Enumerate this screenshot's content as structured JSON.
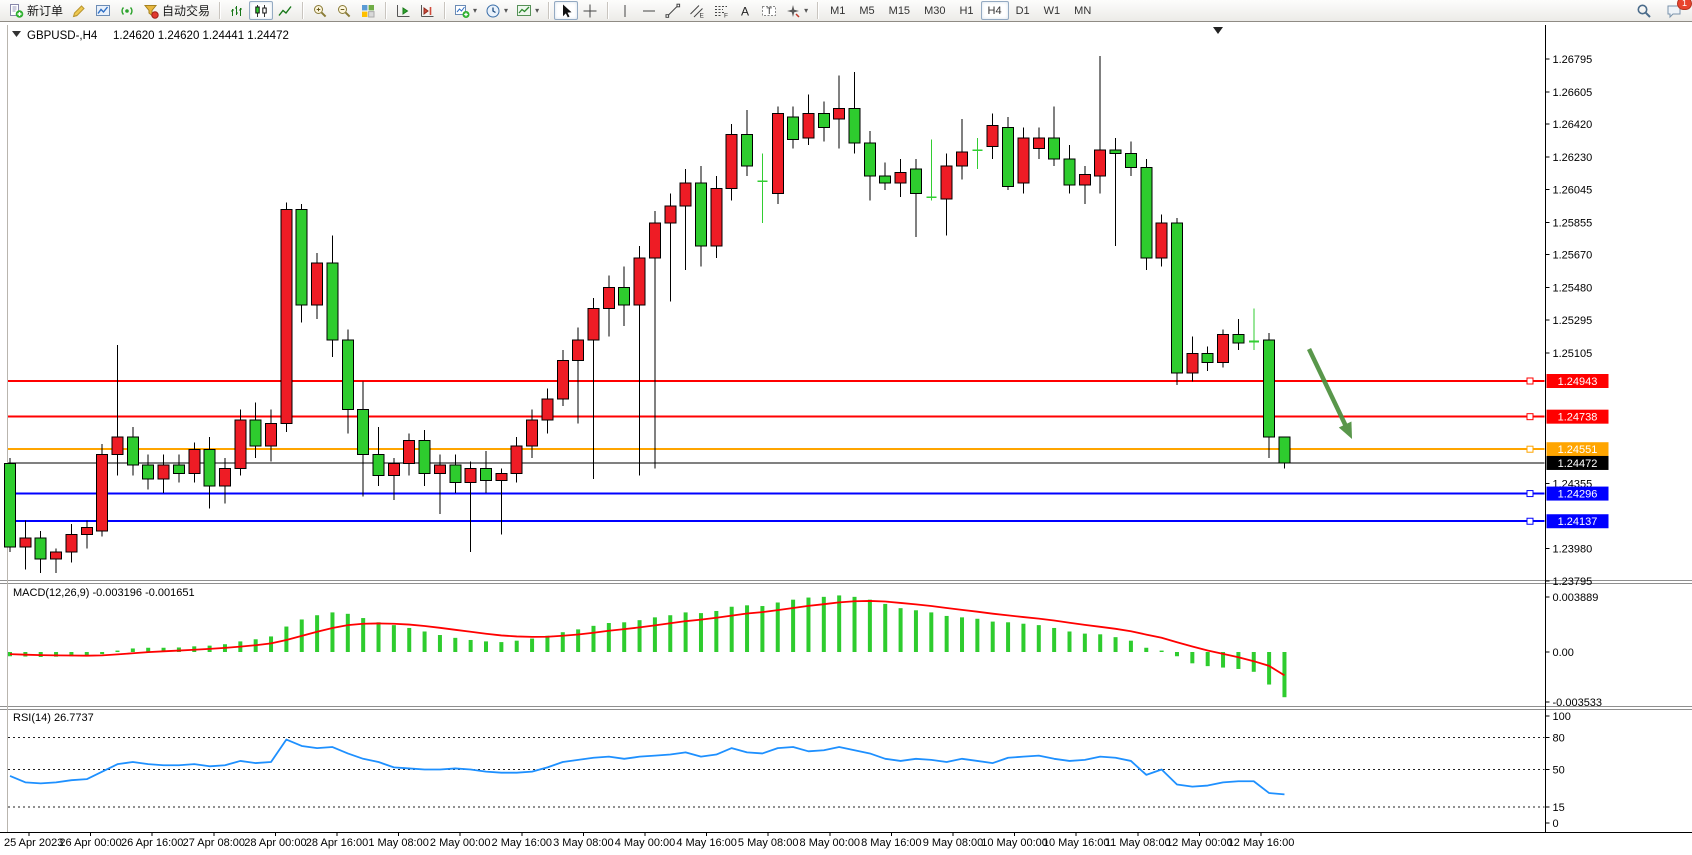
{
  "toolbar": {
    "groups": [
      {
        "items": [
          {
            "name": "new-order-button",
            "icon": "new-order",
            "label": "新订单"
          },
          {
            "name": "metaeditor-button",
            "icon": "pencil"
          },
          {
            "name": "charts-button",
            "icon": "chart-window"
          },
          {
            "name": "signal-button",
            "icon": "signal"
          },
          {
            "name": "auto-trading-button",
            "icon": "funnel",
            "label": "自动交易"
          }
        ]
      },
      {
        "items": [
          {
            "name": "bar-chart-button",
            "icon": "bar-chart"
          },
          {
            "name": "candlestick-chart-button",
            "icon": "candle-chart",
            "active": true
          },
          {
            "name": "line-chart-button",
            "icon": "line-chart"
          }
        ]
      },
      {
        "items": [
          {
            "name": "zoom-in-button",
            "icon": "zoom-in"
          },
          {
            "name": "zoom-out-button",
            "icon": "zoom-out"
          },
          {
            "name": "tile-windows-button",
            "icon": "tile-windows"
          }
        ]
      },
      {
        "items": [
          {
            "name": "auto-scroll-button",
            "icon": "auto-scroll"
          },
          {
            "name": "chart-shift-button",
            "icon": "chart-shift"
          }
        ]
      },
      {
        "items": [
          {
            "name": "new-chart-dropdown",
            "icon": "new-chart",
            "caret": true
          },
          {
            "name": "period-dropdown",
            "icon": "clock",
            "caret": true
          },
          {
            "name": "template-dropdown",
            "icon": "template",
            "caret": true
          }
        ]
      },
      {
        "items": [
          {
            "name": "cursor-button",
            "icon": "cursor",
            "active": true
          },
          {
            "name": "crosshair-button",
            "icon": "crosshair"
          }
        ]
      },
      {
        "items": [
          {
            "name": "vertical-line-button",
            "icon": "vline"
          },
          {
            "name": "horizontal-line-button",
            "icon": "hline"
          },
          {
            "name": "trendline-button",
            "icon": "trend"
          },
          {
            "name": "equidistant-channel-button",
            "icon": "channel"
          },
          {
            "name": "fibonacci-button",
            "icon": "fibo"
          },
          {
            "name": "text-button",
            "icon": "text"
          },
          {
            "name": "text-label-button",
            "icon": "text-label"
          },
          {
            "name": "arrows-dropdown",
            "icon": "arrows",
            "caret": true
          }
        ]
      },
      {
        "items": [
          {
            "name": "timeframe-m1-button",
            "label": "M1",
            "tf": true
          },
          {
            "name": "timeframe-m5-button",
            "label": "M5",
            "tf": true
          },
          {
            "name": "timeframe-m15-button",
            "label": "M15",
            "tf": true
          },
          {
            "name": "timeframe-m30-button",
            "label": "M30",
            "tf": true
          },
          {
            "name": "timeframe-h1-button",
            "label": "H1",
            "tf": true
          },
          {
            "name": "timeframe-h4-button",
            "label": "H4",
            "tf": true,
            "active": true
          },
          {
            "name": "timeframe-d1-button",
            "label": "D1",
            "tf": true
          },
          {
            "name": "timeframe-w1-button",
            "label": "W1",
            "tf": true
          },
          {
            "name": "timeframe-mn-button",
            "label": "MN",
            "tf": true
          }
        ]
      }
    ],
    "right_items": [
      {
        "name": "search-button",
        "icon": "search"
      },
      {
        "name": "notifications-button",
        "icon": "bubble",
        "badge": "1"
      }
    ]
  },
  "chart": {
    "symbol_period": "GBPUSD-,H4",
    "ohlc_text": "1.24620 1.24620 1.24441 1.24472",
    "macd_label": "MACD(12,26,9) -0.003196 -0.001651",
    "rsi_label": "RSI(14) 26.7737",
    "colors": {
      "bull": "#ee1c25",
      "bear": "#2ecc2e",
      "doji": "#32cd32",
      "wick": "#000000",
      "macd_hist": "#2ecc2e",
      "macd_signal": "#ff0000",
      "rsi_line": "#1e90ff",
      "arrow": "#4c8f3c",
      "axis": "#000000"
    }
  },
  "chart_data": {
    "type": "candlestick",
    "title": "GBPUSD-,H4",
    "timeframe": "H4",
    "last_bar": {
      "open": 1.2462,
      "high": 1.2462,
      "low": 1.24441,
      "close": 1.24472
    },
    "price_axis_ticks": [
      1.26795,
      1.26605,
      1.2642,
      1.2623,
      1.26045,
      1.25855,
      1.2567,
      1.2548,
      1.25295,
      1.25105,
      1.24355,
      1.2398,
      1.23795
    ],
    "time_labels": [
      "25 Apr 2023",
      "26 Apr 00:00",
      "26 Apr 16:00",
      "27 Apr 08:00",
      "28 Apr 00:00",
      "28 Apr 16:00",
      "1 May 08:00",
      "2 May 00:00",
      "2 May 16:00",
      "3 May 08:00",
      "4 May 00:00",
      "4 May 16:00",
      "5 May 08:00",
      "8 May 00:00",
      "8 May 16:00",
      "9 May 08:00",
      "10 May 00:00",
      "10 May 16:00",
      "11 May 08:00",
      "12 May 00:00",
      "12 May 16:00"
    ],
    "bars_per_time_label": 4,
    "levels": [
      {
        "price": 1.24943,
        "label": "1.24943",
        "color": "#ff0000",
        "width": 2
      },
      {
        "price": 1.24738,
        "label": "1.24738",
        "color": "#ff0000",
        "width": 2
      },
      {
        "price": 1.24551,
        "label": "1.24551",
        "color": "#ffa500",
        "width": 2
      },
      {
        "price": 1.24472,
        "label": "1.24472",
        "color": "#000000",
        "width": 1
      },
      {
        "price": 1.24296,
        "label": "1.24296",
        "color": "#0000ff",
        "width": 2
      },
      {
        "price": 1.24137,
        "label": "1.24137",
        "color": "#0000ff",
        "width": 2
      }
    ],
    "candles": [
      [
        1.2447,
        1.245,
        1.2396,
        1.2399
      ],
      [
        1.2399,
        1.2414,
        1.2386,
        1.2404
      ],
      [
        1.2404,
        1.2408,
        1.2384,
        1.2392
      ],
      [
        1.2392,
        1.2398,
        1.2384,
        1.2396
      ],
      [
        1.2396,
        1.2412,
        1.239,
        1.2406
      ],
      [
        1.2406,
        1.2414,
        1.2398,
        1.241
      ],
      [
        1.2408,
        1.2458,
        1.2405,
        1.2452
      ],
      [
        1.2452,
        1.2515,
        1.244,
        1.2462
      ],
      [
        1.2462,
        1.2468,
        1.244,
        1.2446
      ],
      [
        1.2446,
        1.2452,
        1.2432,
        1.2438
      ],
      [
        1.2438,
        1.2452,
        1.243,
        1.2446
      ],
      [
        1.2446,
        1.2452,
        1.2436,
        1.2441
      ],
      [
        1.2441,
        1.2459,
        1.2436,
        1.2455
      ],
      [
        1.2455,
        1.2462,
        1.2421,
        1.2434
      ],
      [
        1.2434,
        1.245,
        1.2424,
        1.2444
      ],
      [
        1.2444,
        1.2478,
        1.244,
        1.2472
      ],
      [
        1.2472,
        1.2482,
        1.245,
        1.2457
      ],
      [
        1.2457,
        1.2478,
        1.2448,
        1.247
      ],
      [
        1.247,
        1.2597,
        1.2465,
        1.2593
      ],
      [
        1.2593,
        1.2596,
        1.2528,
        1.2538
      ],
      [
        1.2538,
        1.2568,
        1.253,
        1.2562
      ],
      [
        1.2562,
        1.2578,
        1.2508,
        1.2518
      ],
      [
        1.2518,
        1.2524,
        1.2464,
        1.2478
      ],
      [
        1.2478,
        1.2494,
        1.2428,
        1.2452
      ],
      [
        1.2452,
        1.2468,
        1.2434,
        1.244
      ],
      [
        1.244,
        1.245,
        1.2426,
        1.2447
      ],
      [
        1.2447,
        1.2464,
        1.244,
        1.246
      ],
      [
        1.246,
        1.2466,
        1.2434,
        1.2441
      ],
      [
        1.2441,
        1.2452,
        1.2418,
        1.2446
      ],
      [
        1.2446,
        1.2452,
        1.243,
        1.2436
      ],
      [
        1.2436,
        1.2448,
        1.2396,
        1.2444
      ],
      [
        1.2444,
        1.2454,
        1.243,
        1.2437
      ],
      [
        1.2437,
        1.2444,
        1.2406,
        1.2441
      ],
      [
        1.2441,
        1.2462,
        1.2436,
        1.2457
      ],
      [
        1.2457,
        1.2478,
        1.245,
        1.2472
      ],
      [
        1.2472,
        1.249,
        1.2464,
        1.2484
      ],
      [
        1.2484,
        1.2512,
        1.248,
        1.2506
      ],
      [
        1.2506,
        1.2525,
        1.247,
        1.2518
      ],
      [
        1.2518,
        1.2542,
        1.2438,
        1.2536
      ],
      [
        1.2536,
        1.2555,
        1.252,
        1.2548
      ],
      [
        1.2548,
        1.256,
        1.2526,
        1.2538
      ],
      [
        1.2538,
        1.2572,
        1.244,
        1.2565
      ],
      [
        1.2565,
        1.2592,
        1.2444,
        1.2585
      ],
      [
        1.2585,
        1.2602,
        1.254,
        1.2595
      ],
      [
        1.2595,
        1.2616,
        1.2558,
        1.2608
      ],
      [
        1.2608,
        1.2618,
        1.256,
        1.2572
      ],
      [
        1.2572,
        1.2612,
        1.2565,
        1.2605
      ],
      [
        1.2605,
        1.2642,
        1.2598,
        1.2636
      ],
      [
        1.2636,
        1.265,
        1.2612,
        1.2618
      ],
      [
        1.2609,
        1.2625,
        1.2585,
        1.2609
      ],
      [
        1.2602,
        1.2652,
        1.2596,
        1.2648
      ],
      [
        1.2646,
        1.2652,
        1.2628,
        1.2633
      ],
      [
        1.2634,
        1.2659,
        1.263,
        1.2648
      ],
      [
        1.2648,
        1.2655,
        1.2632,
        1.264
      ],
      [
        1.2645,
        1.267,
        1.2628,
        1.2651
      ],
      [
        1.2651,
        1.2672,
        1.2625,
        1.2631
      ],
      [
        1.2631,
        1.2638,
        1.2598,
        1.2612
      ],
      [
        1.2612,
        1.262,
        1.2604,
        1.2608
      ],
      [
        1.2608,
        1.2622,
        1.26,
        1.2614
      ],
      [
        1.2616,
        1.2622,
        1.2577,
        1.2602
      ],
      [
        1.26,
        1.2633,
        1.2598,
        1.26
      ],
      [
        1.2599,
        1.2625,
        1.2578,
        1.2618
      ],
      [
        1.2618,
        1.2645,
        1.261,
        1.2626
      ],
      [
        1.2627,
        1.2634,
        1.2616,
        1.2627
      ],
      [
        1.2629,
        1.2648,
        1.2622,
        1.2641
      ],
      [
        1.264,
        1.2646,
        1.2604,
        1.2606
      ],
      [
        1.2608,
        1.264,
        1.2602,
        1.2634
      ],
      [
        1.2628,
        1.264,
        1.2622,
        1.2634
      ],
      [
        1.2634,
        1.2652,
        1.2618,
        1.2622
      ],
      [
        1.2622,
        1.263,
        1.2602,
        1.2607
      ],
      [
        1.2607,
        1.2618,
        1.2596,
        1.2613
      ],
      [
        1.2612,
        1.2681,
        1.2602,
        1.2627
      ],
      [
        1.2627,
        1.2634,
        1.2572,
        1.2625
      ],
      [
        1.2625,
        1.2632,
        1.2612,
        1.2617
      ],
      [
        1.2617,
        1.2622,
        1.2558,
        1.2565
      ],
      [
        1.2565,
        1.259,
        1.256,
        1.2585
      ],
      [
        1.2585,
        1.2588,
        1.2492,
        1.2499
      ],
      [
        1.2499,
        1.252,
        1.2494,
        1.251
      ],
      [
        1.251,
        1.2514,
        1.25,
        1.2505
      ],
      [
        1.2505,
        1.2524,
        1.2502,
        1.2521
      ],
      [
        1.2521,
        1.253,
        1.2512,
        1.2516
      ],
      [
        1.2517,
        1.2536,
        1.2512,
        1.2517
      ],
      [
        1.2518,
        1.2522,
        1.245,
        1.2462
      ],
      [
        1.2462,
        1.2462,
        1.24441,
        1.24472
      ]
    ],
    "macd": {
      "label": "MACD(12,26,9) -0.003196 -0.001651",
      "axis_ticks": [
        0.003889,
        0.0,
        -0.003533
      ],
      "current_macd": -0.003196,
      "current_signal": -0.001651,
      "histogram": [
        -0.0003,
        -0.00032,
        -0.00035,
        -0.00033,
        -0.0003,
        -0.00028,
        -0.00015,
        0.0001,
        0.00025,
        0.0003,
        0.0003,
        0.00032,
        0.0004,
        0.00045,
        0.00055,
        0.00075,
        0.0009,
        0.0011,
        0.0018,
        0.0023,
        0.0026,
        0.0028,
        0.0027,
        0.0024,
        0.0021,
        0.0019,
        0.0017,
        0.00145,
        0.0012,
        0.001,
        0.00085,
        0.00075,
        0.0007,
        0.0008,
        0.00095,
        0.00115,
        0.0014,
        0.0016,
        0.00185,
        0.00205,
        0.0021,
        0.00225,
        0.00245,
        0.0026,
        0.0028,
        0.00275,
        0.0029,
        0.0032,
        0.0033,
        0.00325,
        0.0035,
        0.0037,
        0.00385,
        0.0039,
        0.004,
        0.0039,
        0.0037,
        0.0034,
        0.0031,
        0.00295,
        0.0028,
        0.00255,
        0.00245,
        0.00235,
        0.00215,
        0.0021,
        0.002,
        0.0019,
        0.0017,
        0.00145,
        0.0013,
        0.00125,
        0.00105,
        0.0008,
        0.0003,
        0.0001,
        -0.0003,
        -0.0008,
        -0.001,
        -0.0011,
        -0.0012,
        -0.0014,
        -0.0023,
        -0.003196
      ],
      "signal": [
        -0.00015,
        -0.00019,
        -0.00022,
        -0.00024,
        -0.00025,
        -0.00026,
        -0.00024,
        -0.00017,
        -9e-05,
        -1e-05,
        5e-05,
        0.0001,
        0.00016,
        0.00022,
        0.00029,
        0.00038,
        0.00048,
        0.00061,
        0.00085,
        0.00114,
        0.00143,
        0.0017,
        0.0019,
        0.002,
        0.00202,
        0.002,
        0.00194,
        0.00184,
        0.00171,
        0.00157,
        0.00143,
        0.00129,
        0.00117,
        0.0011,
        0.00107,
        0.00108,
        0.00115,
        0.00124,
        0.00136,
        0.0015,
        0.00162,
        0.00174,
        0.00188,
        0.00203,
        0.00218,
        0.00229,
        0.00242,
        0.00257,
        0.00272,
        0.00282,
        0.00296,
        0.00311,
        0.00326,
        0.00338,
        0.00351,
        0.00359,
        0.00361,
        0.00357,
        0.00347,
        0.00337,
        0.00325,
        0.00311,
        0.00298,
        0.00285,
        0.00271,
        0.00259,
        0.00247,
        0.00236,
        0.00223,
        0.00207,
        0.00192,
        0.00178,
        0.00164,
        0.00147,
        0.00123,
        0.00101,
        0.00069,
        0.00039,
        0.00011,
        -0.00013,
        -0.00037,
        -0.00065,
        -0.00098,
        -0.001651
      ]
    },
    "rsi": {
      "label": "RSI(14) 26.7737",
      "axis_ticks": [
        100,
        80,
        50,
        15,
        0
      ],
      "dashed_levels": [
        80,
        50,
        15
      ],
      "current": 26.7737,
      "values": [
        44,
        38,
        37,
        38,
        40,
        41,
        48,
        55,
        57,
        55,
        54,
        54,
        55,
        53,
        54,
        58,
        56,
        57,
        78,
        72,
        70,
        71,
        65,
        60,
        57,
        52,
        51,
        50,
        50,
        51,
        50,
        48,
        47,
        47,
        48,
        52,
        57,
        59,
        61,
        62,
        60,
        62,
        63,
        64,
        66,
        62,
        64,
        70,
        66,
        65,
        70,
        71,
        67,
        68,
        71,
        68,
        65,
        60,
        58,
        60,
        59,
        57,
        60,
        58,
        56,
        61,
        62,
        63,
        60,
        58,
        59,
        62,
        61,
        58,
        45,
        50,
        36,
        34,
        35,
        38,
        39,
        39,
        28,
        26.7737
      ]
    },
    "annotations": [
      {
        "type": "arrow-down-right",
        "color": "#4c8f3c",
        "from": {
          "bar_x": 84.6,
          "price": 1.25127
        },
        "to": {
          "bar_x": 87.4,
          "price": 1.2461
        }
      }
    ],
    "price_range_visible": [
      1.23795,
      1.26795
    ]
  }
}
